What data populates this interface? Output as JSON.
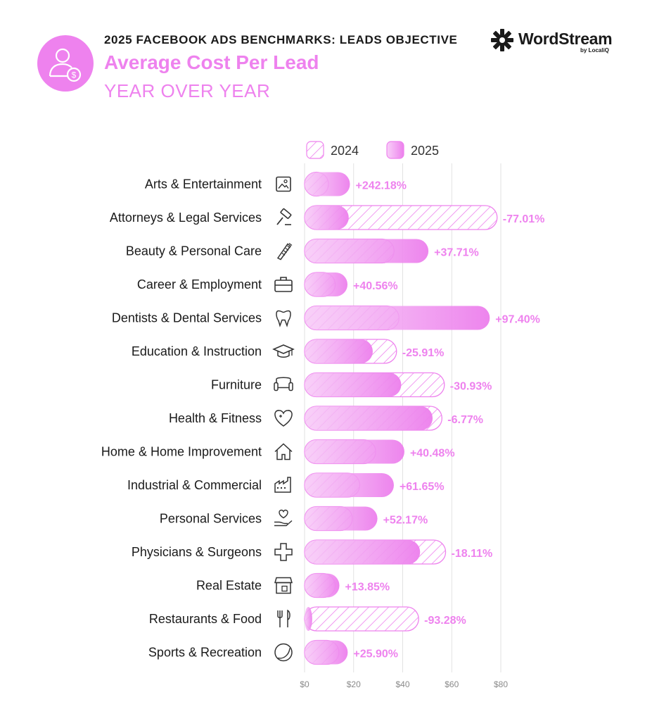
{
  "header": {
    "supertitle": "2025 FACEBOOK ADS BENCHMARKS: LEADS OBJECTIVE",
    "title": "Average Cost Per Lead",
    "subtitle": "YEAR OVER YEAR",
    "icon": "person-dollar-icon"
  },
  "logo": {
    "name": "WordStream",
    "by": "by LocaliQ"
  },
  "colors": {
    "accent": "#ee82ee",
    "bar2025_light": "#f6bdf6",
    "bar2025_dark": "#ec7eec",
    "hatch": "#ee82ee"
  },
  "chart_data": {
    "type": "bar",
    "orientation": "horizontal",
    "title": "Average Cost Per Lead",
    "xlabel": "",
    "ylabel": "",
    "xlim": [
      0,
      80
    ],
    "x_ticks": [
      0,
      20,
      40,
      60,
      80
    ],
    "x_tick_labels": [
      "$0",
      "$20",
      "$40",
      "$60",
      "$80"
    ],
    "grid": true,
    "legend": {
      "position": "top",
      "entries": [
        "2024",
        "2025"
      ]
    },
    "categories": [
      "Arts & Entertainment",
      "Attorneys & Legal Services",
      "Beauty & Personal Care",
      "Career & Employment",
      "Dentists & Dental Services",
      "Education & Instruction",
      "Furniture",
      "Health & Fitness",
      "Home & Home Improvement",
      "Industrial & Commercial",
      "Personal Services",
      "Physicians & Surgeons",
      "Real Estate",
      "Restaurants & Food",
      "Sports & Recreation"
    ],
    "icons": [
      "picture-icon",
      "gavel-icon",
      "comb-icon",
      "briefcase-icon",
      "tooth-icon",
      "graduation-cap-icon",
      "armchair-icon",
      "heart-plus-icon",
      "house-icon",
      "factory-icon",
      "heart-hand-icon",
      "medical-cross-icon",
      "storefront-icon",
      "fork-knife-icon",
      "ball-icon"
    ],
    "series": [
      {
        "name": "2024",
        "values": [
          5.5,
          78.5,
          36.5,
          12.5,
          38.5,
          37.5,
          57.0,
          56.0,
          29.0,
          22.5,
          19.5,
          57.5,
          12.5,
          46.5,
          14.0
        ]
      },
      {
        "name": "2025",
        "values": [
          18.5,
          18.0,
          50.5,
          17.5,
          75.5,
          27.8,
          39.4,
          52.2,
          40.7,
          36.4,
          29.7,
          47.1,
          14.2,
          3.1,
          17.6
        ]
      }
    ],
    "changes": [
      "+242.18%",
      "-77.01%",
      "+37.71%",
      "+40.56%",
      "+97.40%",
      "-25.91%",
      "-30.93%",
      "-6.77%",
      "+40.48%",
      "+61.65%",
      "+52.17%",
      "-18.11%",
      "+13.85%",
      "-93.28%",
      "+25.90%"
    ]
  }
}
